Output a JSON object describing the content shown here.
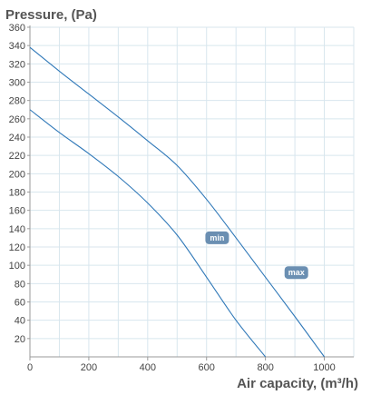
{
  "chart_data": {
    "type": "line",
    "title": "Pressure, (Pa)",
    "xlabel": "Air capacity, (m³/h)",
    "ylabel": "",
    "xlim": [
      0,
      1100
    ],
    "ylim": [
      0,
      360
    ],
    "x_ticks": [
      0,
      200,
      400,
      600,
      800,
      1000
    ],
    "y_ticks": [
      20,
      40,
      60,
      80,
      100,
      120,
      140,
      160,
      180,
      200,
      220,
      240,
      260,
      280,
      300,
      320,
      340,
      360
    ],
    "x_grid_step": 100,
    "grid": true,
    "series": [
      {
        "name": "min",
        "label_anchor": [
          636,
          130
        ],
        "points": [
          [
            0,
            270
          ],
          [
            100,
            245
          ],
          [
            200,
            222
          ],
          [
            300,
            197
          ],
          [
            400,
            168
          ],
          [
            500,
            133
          ],
          [
            600,
            87
          ],
          [
            700,
            40
          ],
          [
            800,
            0
          ]
        ]
      },
      {
        "name": "max",
        "label_anchor": [
          905,
          92
        ],
        "points": [
          [
            0,
            338
          ],
          [
            100,
            312
          ],
          [
            200,
            287
          ],
          [
            300,
            262
          ],
          [
            400,
            236
          ],
          [
            500,
            209
          ],
          [
            600,
            172
          ],
          [
            700,
            130
          ],
          [
            800,
            87
          ],
          [
            900,
            44
          ],
          [
            1000,
            0
          ]
        ]
      }
    ]
  },
  "colors": {
    "line": "#2f78b8",
    "grid": "#d8e6ee",
    "axis": "#9a9a9a",
    "label_bg": "#6b8fb2",
    "text": "#555555"
  }
}
